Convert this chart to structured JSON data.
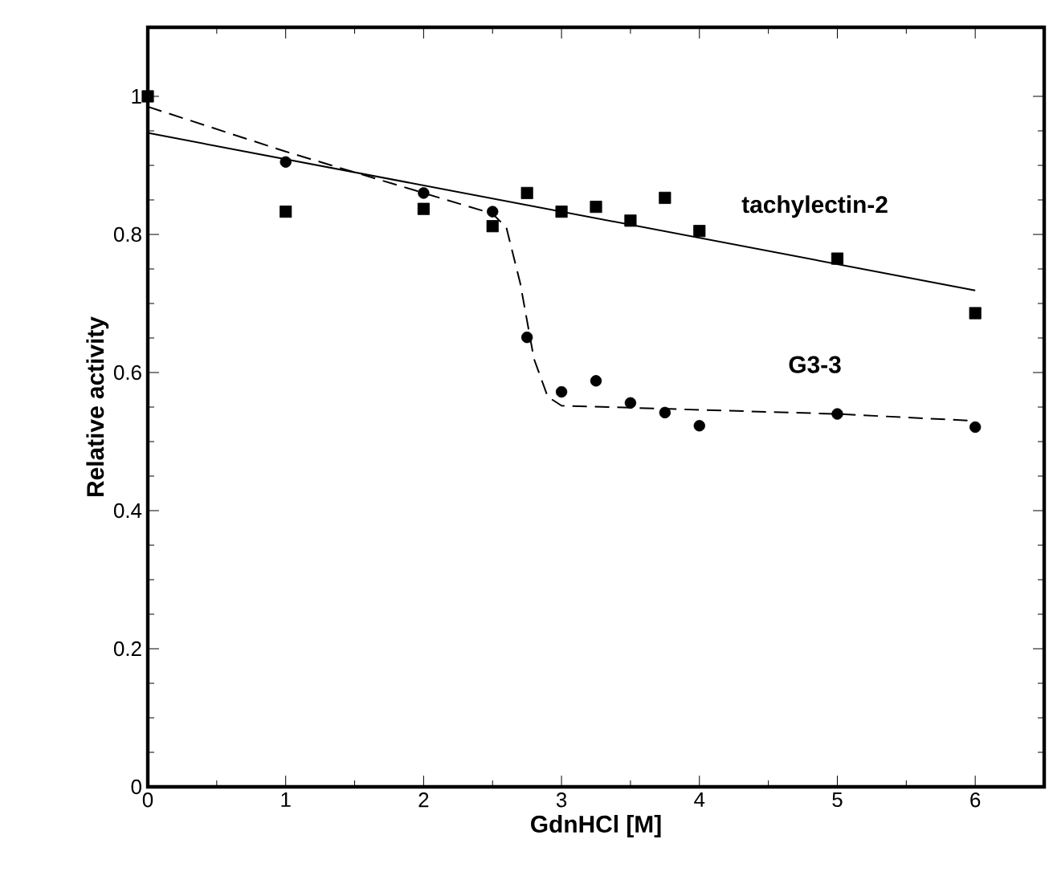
{
  "chart_data": {
    "type": "scatter",
    "xlabel": "GdnHCl [M]",
    "ylabel": "Relative activity",
    "xlim": [
      0,
      6.5
    ],
    "ylim": [
      0,
      1.1
    ],
    "xticks": [
      0,
      1,
      2,
      3,
      4,
      5,
      6
    ],
    "yticks": [
      0,
      0.2,
      0.4,
      0.6,
      0.8,
      1
    ],
    "grid": false,
    "series": [
      {
        "name": "tachylectin-2",
        "marker": "square",
        "color": "#000000",
        "x": [
          0,
          1,
          2,
          2.5,
          2.75,
          3,
          3.25,
          3.5,
          3.75,
          4,
          5,
          6
        ],
        "values": [
          1.0,
          0.833,
          0.837,
          0.812,
          0.86,
          0.833,
          0.84,
          0.82,
          0.853,
          0.805,
          0.765,
          0.686
        ]
      },
      {
        "name": "G3-3",
        "marker": "circle",
        "color": "#000000",
        "x": [
          1,
          2,
          2.5,
          2.75,
          3,
          3.25,
          3.5,
          3.75,
          4,
          5,
          6
        ],
        "values": [
          0.905,
          0.86,
          0.833,
          0.651,
          0.572,
          0.588,
          0.556,
          0.542,
          0.523,
          0.54,
          0.521
        ]
      },
      {
        "type": "line",
        "marker": "none",
        "line_style": "solid",
        "color": "#000000",
        "x": [
          0,
          6
        ],
        "values": [
          0.947,
          0.719
        ]
      },
      {
        "type": "line",
        "marker": "none",
        "line_style": "dashed",
        "color": "#000000",
        "x": [
          0,
          1,
          2,
          2.5,
          2.6,
          2.7,
          2.8,
          2.9,
          3,
          3.5,
          4,
          5,
          6
        ],
        "values": [
          0.985,
          0.92,
          0.86,
          0.83,
          0.81,
          0.73,
          0.62,
          0.565,
          0.552,
          0.549,
          0.546,
          0.54,
          0.53
        ]
      }
    ]
  }
}
